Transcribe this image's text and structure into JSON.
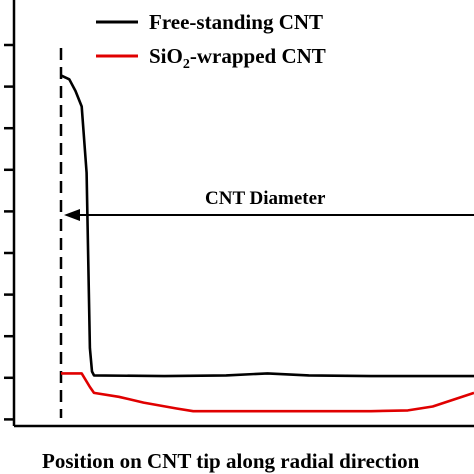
{
  "chart_data": {
    "type": "line",
    "xlabel": "Position on CNT tip along radial direction",
    "ylabel": "",
    "legend_position": "top-right",
    "y_tick_count": 10,
    "series": [
      {
        "name": "Free-standing CNT",
        "color": "#000000",
        "points": [
          [
            0,
            9.0
          ],
          [
            2,
            8.9
          ],
          [
            3.5,
            8.6
          ],
          [
            5,
            8.2
          ],
          [
            6.2,
            6.5
          ],
          [
            7,
            2.0
          ],
          [
            7.5,
            1.4
          ],
          [
            8,
            1.3
          ],
          [
            25,
            1.28
          ],
          [
            40,
            1.3
          ],
          [
            50,
            1.35
          ],
          [
            60,
            1.3
          ],
          [
            75,
            1.28
          ],
          [
            100,
            1.28
          ]
        ]
      },
      {
        "name": "SiO2-wrapped CNT",
        "legend_prefix": "SiO",
        "legend_subscript": "2",
        "legend_suffix": "-wrapped CNT",
        "color": "#e00000",
        "points": [
          [
            0,
            1.35
          ],
          [
            5,
            1.35
          ],
          [
            7,
            1.0
          ],
          [
            8,
            0.85
          ],
          [
            14,
            0.75
          ],
          [
            20,
            0.6
          ],
          [
            28,
            0.45
          ],
          [
            32,
            0.38
          ],
          [
            40,
            0.38
          ],
          [
            55,
            0.38
          ],
          [
            60,
            0.38
          ],
          [
            75,
            0.38
          ],
          [
            84,
            0.4
          ],
          [
            90,
            0.5
          ],
          [
            100,
            0.85
          ]
        ]
      }
    ],
    "annotation": {
      "text": "CNT Diameter"
    }
  }
}
